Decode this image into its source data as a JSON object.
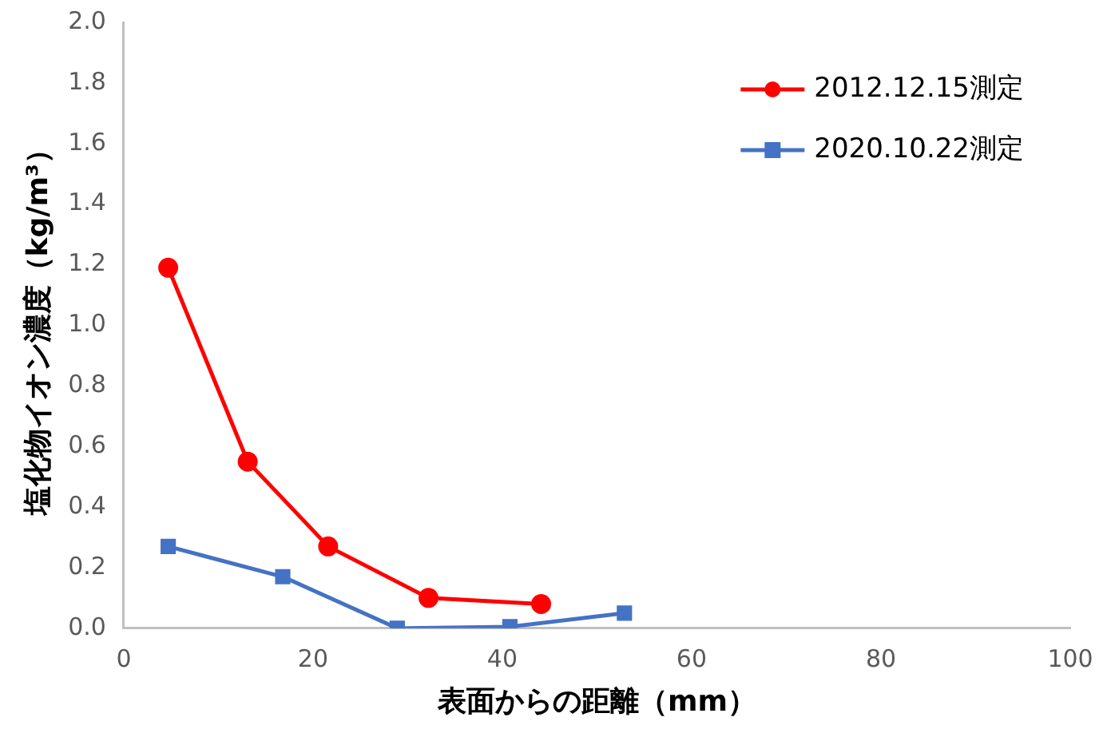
{
  "chart_data": {
    "type": "line",
    "xlabel": "表面からの距離（mm）",
    "ylabel": "塩化物イオン濃度（kg/m³）",
    "xlim": [
      0,
      100
    ],
    "xticks": [
      0,
      20,
      40,
      60,
      80,
      100
    ],
    "ylim": [
      0,
      2.0
    ],
    "yticks": [
      {
        "value": 0,
        "label": "0.0"
      },
      {
        "value": 0.2,
        "label": "0.2"
      },
      {
        "value": 0.4,
        "label": "0.4"
      },
      {
        "value": 0.6,
        "label": "0.6"
      },
      {
        "value": 0.8,
        "label": "0.8"
      },
      {
        "value": 1,
        "label": "1.0"
      },
      {
        "value": 1.2,
        "label": "1.2"
      },
      {
        "value": 1.4,
        "label": "1.4"
      },
      {
        "value": 1.6,
        "label": "1.6"
      },
      {
        "value": 1.8,
        "label": "1.8"
      },
      {
        "value": 2,
        "label": "2.0"
      }
    ],
    "grid": false,
    "legend": "top right",
    "line_style": "solid",
    "series": [
      {
        "name": "2012.12.15測定",
        "color": "#ff0000",
        "marker": "circle",
        "x": [
          4.7,
          13.1,
          21.6,
          32.2,
          44.1
        ],
        "values": [
          1.19,
          0.55,
          0.27,
          0.1,
          0.08
        ]
      },
      {
        "name": "2020.10.22測定",
        "color": "#4472c4",
        "marker": "square",
        "x": [
          4.7,
          16.8,
          28.9,
          40.8,
          52.9
        ],
        "values": [
          0.27,
          0.17,
          0,
          0.005,
          0.05
        ]
      }
    ]
  }
}
